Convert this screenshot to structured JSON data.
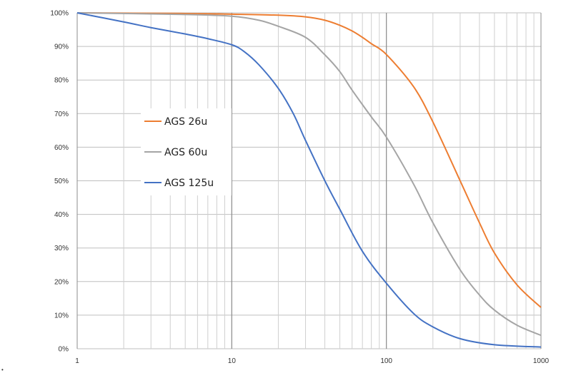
{
  "chart_data": {
    "type": "line",
    "title": "",
    "xlabel": "",
    "ylabel": "",
    "x_scale": "log",
    "xlim": [
      1,
      1000
    ],
    "ylim": [
      0,
      100
    ],
    "x_ticks": [
      "1",
      "10",
      "100",
      "1000"
    ],
    "y_ticks": [
      "0%",
      "10%",
      "20%",
      "30%",
      "40%",
      "50%",
      "60%",
      "70%",
      "80%",
      "90%",
      "100%"
    ],
    "grid": true,
    "legend_position": "left-center",
    "series": [
      {
        "name": "AGS 26u",
        "color": "#ED7D31",
        "points": [
          [
            1,
            100
          ],
          [
            5,
            99.8
          ],
          [
            10,
            99.6
          ],
          [
            20,
            99.3
          ],
          [
            30,
            98.8
          ],
          [
            40,
            97.8
          ],
          [
            50,
            96.3
          ],
          [
            60,
            94.6
          ],
          [
            70,
            92.7
          ],
          [
            80,
            90.8
          ],
          [
            100,
            87.6
          ],
          [
            150,
            78
          ],
          [
            200,
            67.5
          ],
          [
            300,
            50
          ],
          [
            400,
            37.5
          ],
          [
            500,
            28.5
          ],
          [
            700,
            19
          ],
          [
            1000,
            12.3
          ]
        ]
      },
      {
        "name": "AGS 60u",
        "color": "#A5A5A5",
        "points": [
          [
            1,
            100
          ],
          [
            5,
            99.5
          ],
          [
            10,
            99
          ],
          [
            15,
            97.8
          ],
          [
            20,
            96
          ],
          [
            30,
            92.7
          ],
          [
            40,
            87.5
          ],
          [
            50,
            82.5
          ],
          [
            60,
            77
          ],
          [
            80,
            69
          ],
          [
            100,
            63
          ],
          [
            150,
            49
          ],
          [
            200,
            37.5
          ],
          [
            300,
            23.5
          ],
          [
            400,
            16
          ],
          [
            500,
            11.5
          ],
          [
            700,
            7
          ],
          [
            1000,
            4
          ]
        ]
      },
      {
        "name": "AGS 125u",
        "color": "#4472C4",
        "points": [
          [
            1,
            100
          ],
          [
            2,
            97.3
          ],
          [
            3,
            95.6
          ],
          [
            5,
            93.7
          ],
          [
            7,
            92.3
          ],
          [
            10,
            90.5
          ],
          [
            12,
            88.5
          ],
          [
            15,
            84.5
          ],
          [
            20,
            77.5
          ],
          [
            25,
            70
          ],
          [
            30,
            62
          ],
          [
            40,
            50
          ],
          [
            50,
            41.5
          ],
          [
            70,
            29
          ],
          [
            100,
            19.5
          ],
          [
            150,
            10.5
          ],
          [
            200,
            6.5
          ],
          [
            300,
            3
          ],
          [
            500,
            1.2
          ],
          [
            1000,
            0.5
          ]
        ]
      }
    ]
  },
  "corner_mark": "•"
}
